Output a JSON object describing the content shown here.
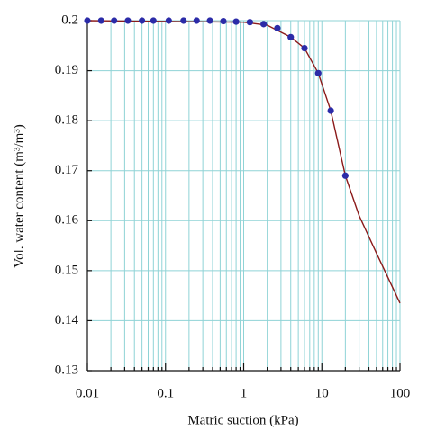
{
  "chart_data": {
    "type": "line",
    "x_label": "Matric suction (kPa)",
    "y_label": "Vol. water content (m³/m³)",
    "xscale": "log",
    "xlim": [
      0.01,
      100
    ],
    "xticks": [
      0.01,
      0.1,
      1,
      10,
      100
    ],
    "ylim": [
      0.13,
      0.2
    ],
    "yticks": [
      0.13,
      0.14,
      0.15,
      0.16,
      0.17,
      0.18,
      0.19,
      0.2
    ],
    "grid": true,
    "series": [
      {
        "color": "#8b1a1a",
        "marker": false,
        "x": [
          0.01,
          1,
          2,
          4,
          6,
          9,
          13,
          20,
          30,
          50,
          100
        ],
        "values": [
          0.2,
          0.1997,
          0.1991,
          0.1967,
          0.1945,
          0.1895,
          0.182,
          0.169,
          0.161,
          0.1535,
          0.1435
        ]
      },
      {
        "color": "#2b2ba8",
        "marker": true,
        "x": [
          0.01,
          0.015,
          0.022,
          0.033,
          0.05,
          0.07,
          0.11,
          0.17,
          0.25,
          0.37,
          0.55,
          0.8,
          1.2,
          1.8,
          2.7,
          4,
          6,
          9,
          13,
          20
        ],
        "values": [
          0.2,
          0.2,
          0.2,
          0.2,
          0.2,
          0.2,
          0.2,
          0.2,
          0.2,
          0.2,
          0.1999,
          0.1998,
          0.1997,
          0.1993,
          0.1985,
          0.1967,
          0.1945,
          0.1895,
          0.182,
          0.169
        ]
      }
    ]
  }
}
